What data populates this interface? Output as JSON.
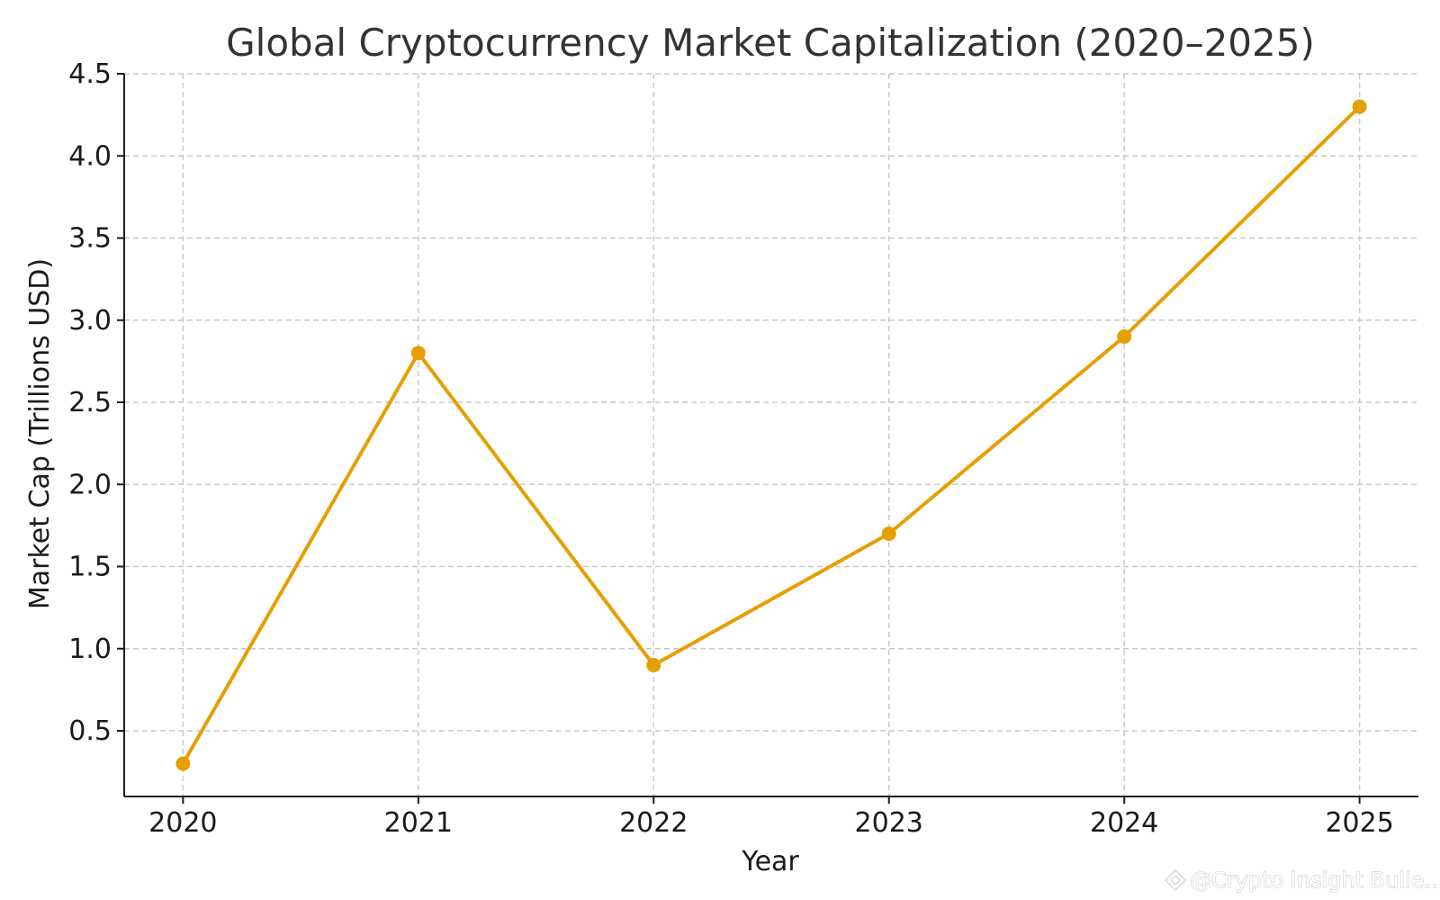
{
  "chart_data": {
    "type": "line",
    "title": "Global Cryptocurrency Market Capitalization (2020–2025)",
    "xlabel": "Year",
    "ylabel": "Market Cap (Trillions USD)",
    "x": [
      2020,
      2021,
      2022,
      2023,
      2024,
      2025
    ],
    "x_tick_labels": [
      "2020",
      "2021",
      "2022",
      "2023",
      "2024",
      "2025"
    ],
    "series": [
      {
        "values": [
          0.3,
          2.8,
          0.9,
          1.7,
          2.9,
          4.3
        ],
        "color": "#e69f00",
        "marker": "circle"
      }
    ],
    "y_ticks": [
      0.5,
      1.0,
      1.5,
      2.0,
      2.5,
      3.0,
      3.5,
      4.0,
      4.5
    ],
    "y_tick_labels": [
      "0.5",
      "1.0",
      "1.5",
      "2.0",
      "2.5",
      "3.0",
      "3.5",
      "4.0",
      "4.5"
    ],
    "xlim": [
      2019.75,
      2025.25
    ],
    "ylim": [
      0.1,
      4.5
    ],
    "grid": true,
    "grid_style": "dashed"
  },
  "watermark": {
    "text": "@Crypto Insight Bulle...",
    "icon": "diamond-logo-icon"
  }
}
